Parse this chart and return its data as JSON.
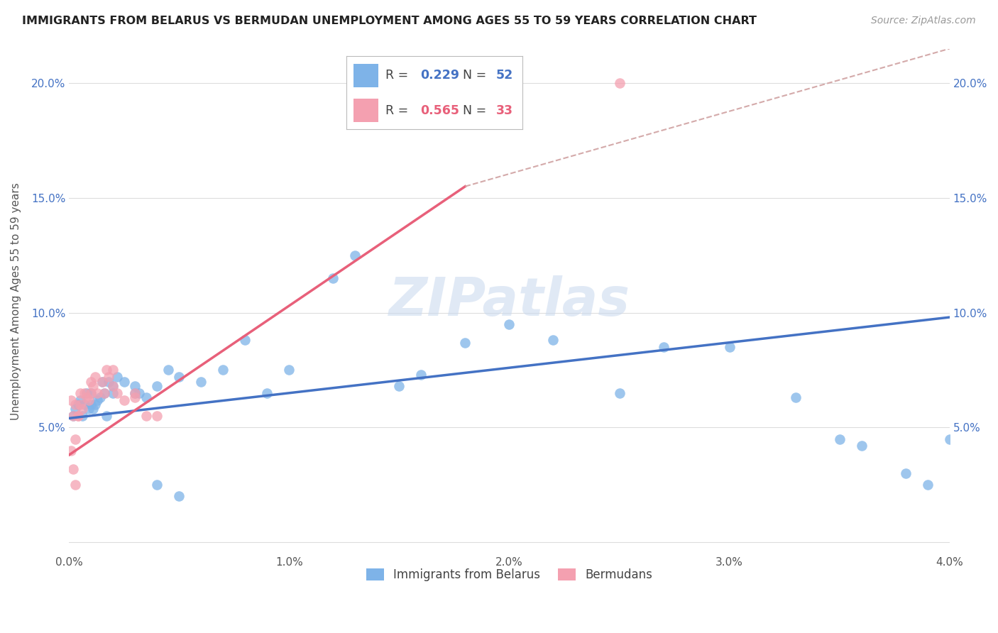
{
  "title": "IMMIGRANTS FROM BELARUS VS BERMUDAN UNEMPLOYMENT AMONG AGES 55 TO 59 YEARS CORRELATION CHART",
  "source": "Source: ZipAtlas.com",
  "ylabel": "Unemployment Among Ages 55 to 59 years",
  "x_min": 0.0,
  "x_max": 0.04,
  "y_min": -0.005,
  "y_max": 0.215,
  "x_ticks": [
    0.0,
    0.01,
    0.02,
    0.03,
    0.04
  ],
  "x_tick_labels": [
    "0.0%",
    "1.0%",
    "2.0%",
    "3.0%",
    "4.0%"
  ],
  "y_ticks": [
    0.0,
    0.05,
    0.1,
    0.15,
    0.2
  ],
  "y_tick_labels": [
    "",
    "5.0%",
    "10.0%",
    "15.0%",
    "20.0%"
  ],
  "color_blue": "#7EB3E8",
  "color_pink": "#F4A0B0",
  "color_blue_line": "#4472C4",
  "color_pink_line": "#E8607A",
  "color_dashed": "#D4AAAA",
  "watermark": "ZIPatlas",
  "blue_scatter_x": [
    0.0002,
    0.0003,
    0.0004,
    0.0005,
    0.0006,
    0.0007,
    0.0008,
    0.0009,
    0.001,
    0.001,
    0.0011,
    0.0012,
    0.0013,
    0.0014,
    0.0015,
    0.0016,
    0.0017,
    0.0018,
    0.002,
    0.002,
    0.0022,
    0.0025,
    0.003,
    0.003,
    0.0032,
    0.0035,
    0.004,
    0.0045,
    0.005,
    0.006,
    0.007,
    0.008,
    0.009,
    0.01,
    0.012,
    0.013,
    0.015,
    0.016,
    0.018,
    0.02,
    0.022,
    0.025,
    0.027,
    0.03,
    0.033,
    0.035,
    0.036,
    0.038,
    0.039,
    0.04,
    0.004,
    0.005
  ],
  "blue_scatter_y": [
    0.055,
    0.058,
    0.06,
    0.062,
    0.055,
    0.06,
    0.065,
    0.058,
    0.06,
    0.065,
    0.058,
    0.06,
    0.062,
    0.063,
    0.07,
    0.065,
    0.055,
    0.07,
    0.065,
    0.068,
    0.072,
    0.07,
    0.065,
    0.068,
    0.065,
    0.063,
    0.068,
    0.075,
    0.072,
    0.07,
    0.075,
    0.088,
    0.065,
    0.075,
    0.115,
    0.125,
    0.068,
    0.073,
    0.087,
    0.095,
    0.088,
    0.065,
    0.085,
    0.085,
    0.063,
    0.045,
    0.042,
    0.03,
    0.025,
    0.045,
    0.025,
    0.02
  ],
  "pink_scatter_x": [
    0.0001,
    0.0002,
    0.0003,
    0.0003,
    0.0004,
    0.0005,
    0.0006,
    0.0007,
    0.0008,
    0.0009,
    0.001,
    0.001,
    0.0011,
    0.0012,
    0.0013,
    0.0015,
    0.0016,
    0.0017,
    0.0018,
    0.002,
    0.002,
    0.0022,
    0.0025,
    0.003,
    0.003,
    0.0035,
    0.004,
    0.0001,
    0.0002,
    0.0003,
    0.0004,
    0.0005,
    0.025
  ],
  "pink_scatter_y": [
    0.04,
    0.032,
    0.025,
    0.045,
    0.055,
    0.06,
    0.058,
    0.065,
    0.063,
    0.062,
    0.07,
    0.065,
    0.068,
    0.072,
    0.065,
    0.07,
    0.065,
    0.075,
    0.072,
    0.068,
    0.075,
    0.065,
    0.062,
    0.063,
    0.065,
    0.055,
    0.055,
    0.062,
    0.055,
    0.06,
    0.055,
    0.065,
    0.2
  ],
  "blue_line_x": [
    0.0,
    0.04
  ],
  "blue_line_y": [
    0.054,
    0.098
  ],
  "pink_line_x": [
    0.0,
    0.018
  ],
  "pink_line_y": [
    0.038,
    0.155
  ],
  "dashed_line_x": [
    0.018,
    0.04
  ],
  "dashed_line_y": [
    0.155,
    0.215
  ]
}
